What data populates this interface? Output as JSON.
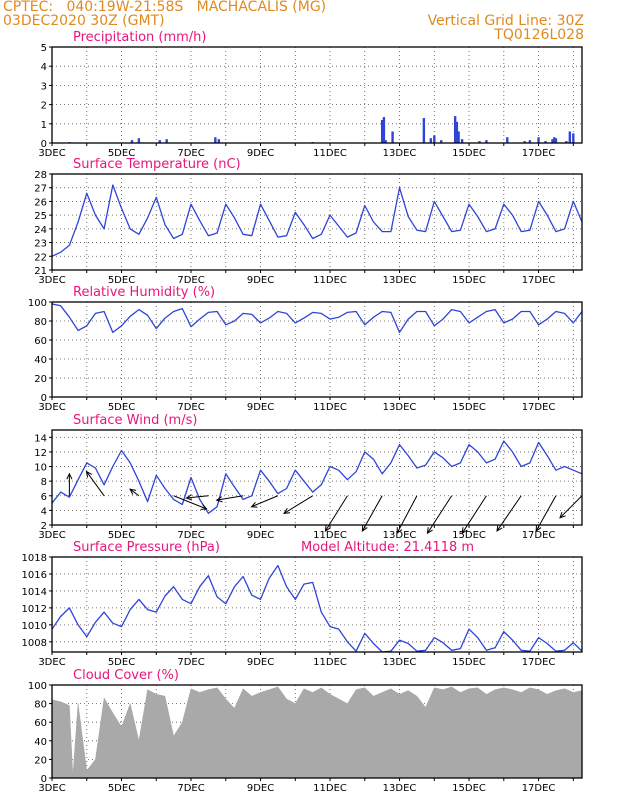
{
  "header": {
    "line1_left": "CPTEC:   040:19W-21:58S   MACHACALIS (MG)",
    "line2_left": "03DEC2020 30Z (GMT)",
    "line1_right": "Vertical Grid Line: 30Z",
    "line2_right": "TQ0126L028"
  },
  "colors": {
    "header": "#e08a1e",
    "title": "#e8157d",
    "series": "#2f45d8",
    "cloud": "#a9a9a9",
    "axis": "#000000"
  },
  "x_ticks": [
    "3DEC",
    "5DEC",
    "7DEC",
    "9DEC",
    "11DEC",
    "13DEC",
    "15DEC",
    "17DEC"
  ],
  "x_tick_days": [
    3,
    5,
    7,
    9,
    11,
    13,
    15,
    17
  ],
  "x_range": [
    3,
    18.25
  ],
  "chart_data": [
    {
      "id": "precip",
      "type": "bar",
      "title": "Precipitation (mm/h)",
      "ylim": [
        0,
        5
      ],
      "yticks": [
        0,
        1,
        2,
        3,
        4,
        5
      ],
      "x": [
        3.5,
        4.8,
        5.3,
        5.5,
        6.1,
        6.3,
        7.7,
        7.8,
        10.5,
        12.5,
        12.55,
        12.6,
        12.8,
        13.7,
        13.9,
        14.0,
        14.2,
        14.6,
        14.65,
        14.7,
        14.8,
        15.3,
        15.5,
        16.1,
        16.6,
        16.75,
        17.0,
        17.2,
        17.4,
        17.45,
        17.5,
        17.8,
        17.9,
        18.0
      ],
      "values": [
        0.05,
        0.03,
        0.15,
        0.25,
        0.15,
        0.2,
        0.3,
        0.2,
        0.05,
        1.2,
        1.35,
        0.15,
        0.6,
        1.3,
        0.25,
        0.4,
        0.15,
        1.4,
        1.1,
        0.6,
        0.2,
        0.1,
        0.15,
        0.3,
        0.1,
        0.15,
        0.3,
        0.1,
        0.2,
        0.3,
        0.25,
        0.1,
        0.6,
        0.5
      ]
    },
    {
      "id": "temp",
      "type": "line",
      "title": "Surface Temperature (nC)",
      "ylim": [
        21,
        28
      ],
      "yticks": [
        21,
        22,
        23,
        24,
        25,
        26,
        27,
        28
      ],
      "x": [
        3.0,
        3.25,
        3.5,
        3.75,
        4.0,
        4.25,
        4.5,
        4.75,
        5.0,
        5.25,
        5.5,
        5.75,
        6.0,
        6.25,
        6.5,
        6.75,
        7.0,
        7.25,
        7.5,
        7.75,
        8.0,
        8.25,
        8.5,
        8.75,
        9.0,
        9.25,
        9.5,
        9.75,
        10.0,
        10.25,
        10.5,
        10.75,
        11.0,
        11.25,
        11.5,
        11.75,
        12.0,
        12.25,
        12.5,
        12.75,
        13.0,
        13.25,
        13.5,
        13.75,
        14.0,
        14.25,
        14.5,
        14.75,
        15.0,
        15.25,
        15.5,
        15.75,
        16.0,
        16.25,
        16.5,
        16.75,
        17.0,
        17.25,
        17.5,
        17.75,
        18.0,
        18.25
      ],
      "values": [
        22.0,
        22.3,
        22.8,
        24.5,
        26.6,
        25.0,
        24.0,
        27.2,
        25.5,
        24.0,
        23.6,
        24.8,
        26.3,
        24.3,
        23.3,
        23.6,
        25.8,
        24.6,
        23.5,
        23.7,
        25.8,
        24.8,
        23.6,
        23.5,
        25.8,
        24.6,
        23.4,
        23.5,
        25.2,
        24.3,
        23.3,
        23.6,
        25.0,
        24.2,
        23.4,
        23.7,
        25.7,
        24.5,
        23.8,
        23.8,
        27.0,
        24.9,
        23.9,
        23.8,
        26.0,
        24.9,
        23.8,
        23.9,
        25.8,
        24.9,
        23.8,
        24.0,
        25.8,
        25.0,
        23.8,
        23.9,
        26.0,
        25.0,
        23.8,
        24.0,
        26.0,
        24.5
      ]
    },
    {
      "id": "rh",
      "type": "line",
      "title": "Relative Humidity (%)",
      "ylim": [
        0,
        100
      ],
      "yticks": [
        0,
        20,
        40,
        60,
        80,
        100
      ],
      "x": [
        3.0,
        3.25,
        3.5,
        3.75,
        4.0,
        4.25,
        4.5,
        4.75,
        5.0,
        5.25,
        5.5,
        5.75,
        6.0,
        6.25,
        6.5,
        6.75,
        7.0,
        7.25,
        7.5,
        7.75,
        8.0,
        8.25,
        8.5,
        8.75,
        9.0,
        9.25,
        9.5,
        9.75,
        10.0,
        10.25,
        10.5,
        10.75,
        11.0,
        11.25,
        11.5,
        11.75,
        12.0,
        12.25,
        12.5,
        12.75,
        13.0,
        13.25,
        13.5,
        13.75,
        14.0,
        14.25,
        14.5,
        14.75,
        15.0,
        15.25,
        15.5,
        15.75,
        16.0,
        16.25,
        16.5,
        16.75,
        17.0,
        17.25,
        17.5,
        17.75,
        18.0,
        18.25
      ],
      "values": [
        98,
        96,
        84,
        70,
        75,
        88,
        90,
        68,
        75,
        85,
        92,
        86,
        72,
        83,
        90,
        93,
        74,
        82,
        89,
        90,
        76,
        80,
        88,
        87,
        78,
        83,
        90,
        88,
        78,
        83,
        89,
        88,
        82,
        84,
        89,
        90,
        76,
        84,
        90,
        89,
        68,
        82,
        90,
        90,
        75,
        82,
        92,
        90,
        78,
        84,
        90,
        92,
        78,
        82,
        90,
        90,
        76,
        82,
        90,
        88,
        78,
        90
      ]
    },
    {
      "id": "wind",
      "type": "line",
      "title": "Surface Wind (m/s)",
      "ylim": [
        2,
        15
      ],
      "yticks": [
        2,
        4,
        6,
        8,
        10,
        12,
        14
      ],
      "x": [
        3.0,
        3.25,
        3.5,
        3.75,
        4.0,
        4.25,
        4.5,
        4.75,
        5.0,
        5.25,
        5.5,
        5.75,
        6.0,
        6.25,
        6.5,
        6.75,
        7.0,
        7.25,
        7.5,
        7.75,
        8.0,
        8.25,
        8.5,
        8.75,
        9.0,
        9.25,
        9.5,
        9.75,
        10.0,
        10.25,
        10.5,
        10.75,
        11.0,
        11.25,
        11.5,
        11.75,
        12.0,
        12.25,
        12.5,
        12.75,
        13.0,
        13.25,
        13.5,
        13.75,
        14.0,
        14.25,
        14.5,
        14.75,
        15.0,
        15.25,
        15.5,
        15.75,
        16.0,
        16.25,
        16.5,
        16.75,
        17.0,
        17.25,
        17.5,
        17.75,
        18.0,
        18.25
      ],
      "values": [
        5.0,
        6.5,
        5.8,
        8.2,
        10.5,
        9.8,
        7.5,
        10.0,
        12.2,
        10.5,
        8.0,
        5.2,
        8.8,
        7.0,
        5.5,
        4.8,
        8.5,
        5.5,
        3.6,
        4.5,
        9.0,
        7.2,
        5.5,
        6.0,
        9.5,
        8.0,
        6.3,
        7.0,
        9.5,
        8.0,
        6.5,
        7.5,
        10.0,
        9.5,
        8.2,
        9.3,
        12.0,
        11.0,
        9.0,
        10.5,
        13.0,
        11.5,
        9.8,
        10.2,
        12.0,
        11.2,
        10.0,
        10.5,
        13.0,
        12.0,
        10.5,
        11.0,
        13.5,
        12.0,
        10.0,
        10.5,
        13.3,
        11.5,
        9.5,
        10.0,
        9.5,
        9.0
      ],
      "arrows_x": [
        3.5,
        4.5,
        5.5,
        6.5,
        7.5,
        8.5,
        9.5,
        10.5,
        11.5,
        12.5,
        13.5,
        14.5,
        15.5,
        16.5,
        17.5,
        18.25
      ],
      "arrows_u": [
        0.0,
        0.8,
        0.4,
        -1.5,
        1.0,
        1.2,
        1.2,
        1.3,
        1.0,
        0.9,
        0.9,
        1.1,
        1.1,
        1.1,
        0.9,
        1.0
      ],
      "arrows_v": [
        -1.0,
        -1.1,
        -0.3,
        0.6,
        0.1,
        0.2,
        0.5,
        0.8,
        1.6,
        1.6,
        1.7,
        1.7,
        1.7,
        1.6,
        1.6,
        1.0
      ]
    },
    {
      "id": "pressure",
      "type": "line",
      "title": "Surface Pressure (hPa)",
      "annotation": "Model Altitude: 21.4118 m",
      "ylim": [
        1006.8,
        1018
      ],
      "yticks": [
        1008,
        1010,
        1012,
        1014,
        1016,
        1018
      ],
      "x": [
        3.0,
        3.25,
        3.5,
        3.75,
        4.0,
        4.25,
        4.5,
        4.75,
        5.0,
        5.25,
        5.5,
        5.75,
        6.0,
        6.25,
        6.5,
        6.75,
        7.0,
        7.25,
        7.5,
        7.75,
        8.0,
        8.25,
        8.5,
        8.75,
        9.0,
        9.25,
        9.5,
        9.75,
        10.0,
        10.25,
        10.5,
        10.75,
        11.0,
        11.25,
        11.5,
        11.75,
        12.0,
        12.25,
        12.5,
        12.75,
        13.0,
        13.25,
        13.5,
        13.75,
        14.0,
        14.25,
        14.5,
        14.75,
        15.0,
        15.25,
        15.5,
        15.75,
        16.0,
        16.25,
        16.5,
        16.75,
        17.0,
        17.25,
        17.5,
        17.75,
        18.0,
        18.25
      ],
      "values": [
        1009.5,
        1011.0,
        1012.0,
        1010.0,
        1008.6,
        1010.3,
        1011.5,
        1010.2,
        1009.8,
        1011.8,
        1013.0,
        1011.8,
        1011.5,
        1013.4,
        1014.5,
        1013.0,
        1012.5,
        1014.5,
        1015.8,
        1013.3,
        1012.5,
        1014.5,
        1015.7,
        1013.5,
        1013.0,
        1015.5,
        1017.0,
        1014.5,
        1013.0,
        1014.8,
        1015.0,
        1011.5,
        1009.8,
        1009.5,
        1008.0,
        1006.9,
        1009.0,
        1007.8,
        1006.8,
        1006.9,
        1008.2,
        1007.8,
        1006.9,
        1007.0,
        1008.5,
        1007.9,
        1007.0,
        1007.2,
        1009.5,
        1008.5,
        1007.0,
        1007.3,
        1009.2,
        1008.2,
        1007.0,
        1006.9,
        1008.5,
        1007.8,
        1006.9,
        1007.0,
        1007.9,
        1006.9
      ]
    },
    {
      "id": "cloud",
      "type": "area",
      "title": "Cloud Cover (%)",
      "ylim": [
        0,
        100
      ],
      "yticks": [
        0,
        20,
        40,
        60,
        80,
        100
      ],
      "x": [
        3.0,
        3.25,
        3.5,
        3.6,
        3.75,
        4.0,
        4.25,
        4.5,
        4.75,
        5.0,
        5.25,
        5.5,
        5.75,
        6.0,
        6.25,
        6.5,
        6.75,
        7.0,
        7.25,
        7.5,
        7.75,
        8.0,
        8.25,
        8.5,
        8.75,
        9.0,
        9.25,
        9.5,
        9.75,
        10.0,
        10.25,
        10.5,
        10.75,
        11.0,
        11.25,
        11.5,
        11.75,
        12.0,
        12.25,
        12.5,
        12.75,
        13.0,
        13.25,
        13.5,
        13.75,
        14.0,
        14.25,
        14.5,
        14.75,
        15.0,
        15.25,
        15.5,
        15.75,
        16.0,
        16.25,
        16.5,
        16.75,
        17.0,
        17.25,
        17.5,
        17.75,
        18.0,
        18.25
      ],
      "values": [
        84,
        82,
        78,
        3,
        80,
        8,
        20,
        86,
        70,
        55,
        80,
        40,
        95,
        90,
        88,
        45,
        60,
        96,
        92,
        95,
        97,
        85,
        75,
        96,
        88,
        92,
        95,
        98,
        85,
        80,
        96,
        92,
        97,
        90,
        85,
        80,
        95,
        97,
        88,
        92,
        96,
        90,
        94,
        88,
        76,
        97,
        95,
        98,
        92,
        96,
        97,
        90,
        95,
        97,
        95,
        92,
        97,
        95,
        90,
        94,
        96,
        92,
        94
      ]
    }
  ]
}
